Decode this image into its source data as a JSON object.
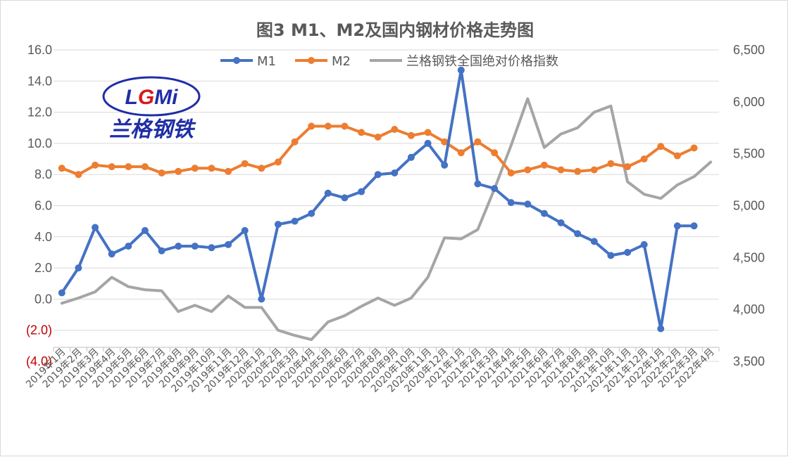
{
  "chart_data": {
    "type": "line",
    "title": "图3 M1、M2及国内钢材价格走势图",
    "categories": [
      "2019年1月",
      "2019年2月",
      "2019年3月",
      "2019年4月",
      "2019年5月",
      "2019年6月",
      "2019年7月",
      "2019年8月",
      "2019年9月",
      "2019年10月",
      "2019年11月",
      "2019年12月",
      "2020年1月",
      "2020年2月",
      "2020年3月",
      "2020年4月",
      "2020年5月",
      "2020年6月",
      "2020年7月",
      "2020年8月",
      "2020年9月",
      "2020年10月",
      "2020年11月",
      "2020年12月",
      "2021年1月",
      "2021年2月",
      "2021年3月",
      "2021年4月",
      "2021年5月",
      "2021年6月",
      "2021年7月",
      "2021年8月",
      "2021年9月",
      "2021年10月",
      "2021年11月",
      "2021年12月",
      "2022年1月",
      "2022年2月",
      "2022年3月",
      "2022年4月"
    ],
    "series": [
      {
        "name": "M1",
        "axis": "left",
        "color": "#4472c4",
        "markers": true,
        "values": [
          0.4,
          2.0,
          4.6,
          2.9,
          3.4,
          4.4,
          3.1,
          3.4,
          3.4,
          3.3,
          3.5,
          4.4,
          0.0,
          4.8,
          5.0,
          5.5,
          6.8,
          6.5,
          6.9,
          8.0,
          8.1,
          9.1,
          10.0,
          8.6,
          14.7,
          7.4,
          7.1,
          6.2,
          6.1,
          5.5,
          4.9,
          4.2,
          3.7,
          2.8,
          3.0,
          3.5,
          -1.9,
          4.7,
          4.7,
          null
        ]
      },
      {
        "name": "M2",
        "axis": "left",
        "color": "#ed7d31",
        "markers": true,
        "values": [
          8.4,
          8.0,
          8.6,
          8.5,
          8.5,
          8.5,
          8.1,
          8.2,
          8.4,
          8.4,
          8.2,
          8.7,
          8.4,
          8.8,
          10.1,
          11.1,
          11.1,
          11.1,
          10.7,
          10.4,
          10.9,
          10.5,
          10.7,
          10.1,
          9.4,
          10.1,
          9.4,
          8.1,
          8.3,
          8.6,
          8.3,
          8.2,
          8.3,
          8.7,
          8.5,
          9.0,
          9.8,
          9.2,
          9.7,
          null
        ]
      },
      {
        "name": "兰格钢铁全国绝对价格指数",
        "axis": "right",
        "color": "#a5a5a5",
        "markers": false,
        "values": [
          4060,
          4110,
          4170,
          4310,
          4220,
          4190,
          4180,
          3980,
          4040,
          3980,
          4130,
          4020,
          4020,
          3800,
          3750,
          3710,
          3880,
          3940,
          4030,
          4110,
          4040,
          4110,
          4310,
          4690,
          4680,
          4770,
          5160,
          5580,
          6030,
          5560,
          5690,
          5750,
          5900,
          5960,
          5230,
          5110,
          5070,
          5200,
          5280,
          5420
        ]
      }
    ],
    "y_left": {
      "min": -4.0,
      "max": 16.0,
      "step": 2.0,
      "tick_labels": [
        "(4.0)",
        "(2.0)",
        "0.0",
        "2.0",
        "4.0",
        "6.0",
        "8.0",
        "10.0",
        "12.0",
        "14.0",
        "16.0"
      ],
      "negative_color": "#c00000"
    },
    "y_right": {
      "min": 3500,
      "max": 6500,
      "step": 500,
      "tick_labels": [
        "3,500",
        "4,000",
        "4,500",
        "5,000",
        "5,500",
        "6,000",
        "6,500"
      ]
    },
    "grid": true,
    "grid_color": "#d9d9d9",
    "legend_position": "top",
    "logo": {
      "text": "LGMi",
      "subtitle": "兰格钢铁",
      "colors": {
        "blue": "#1f2ea6",
        "red": "#d7191c"
      }
    }
  }
}
